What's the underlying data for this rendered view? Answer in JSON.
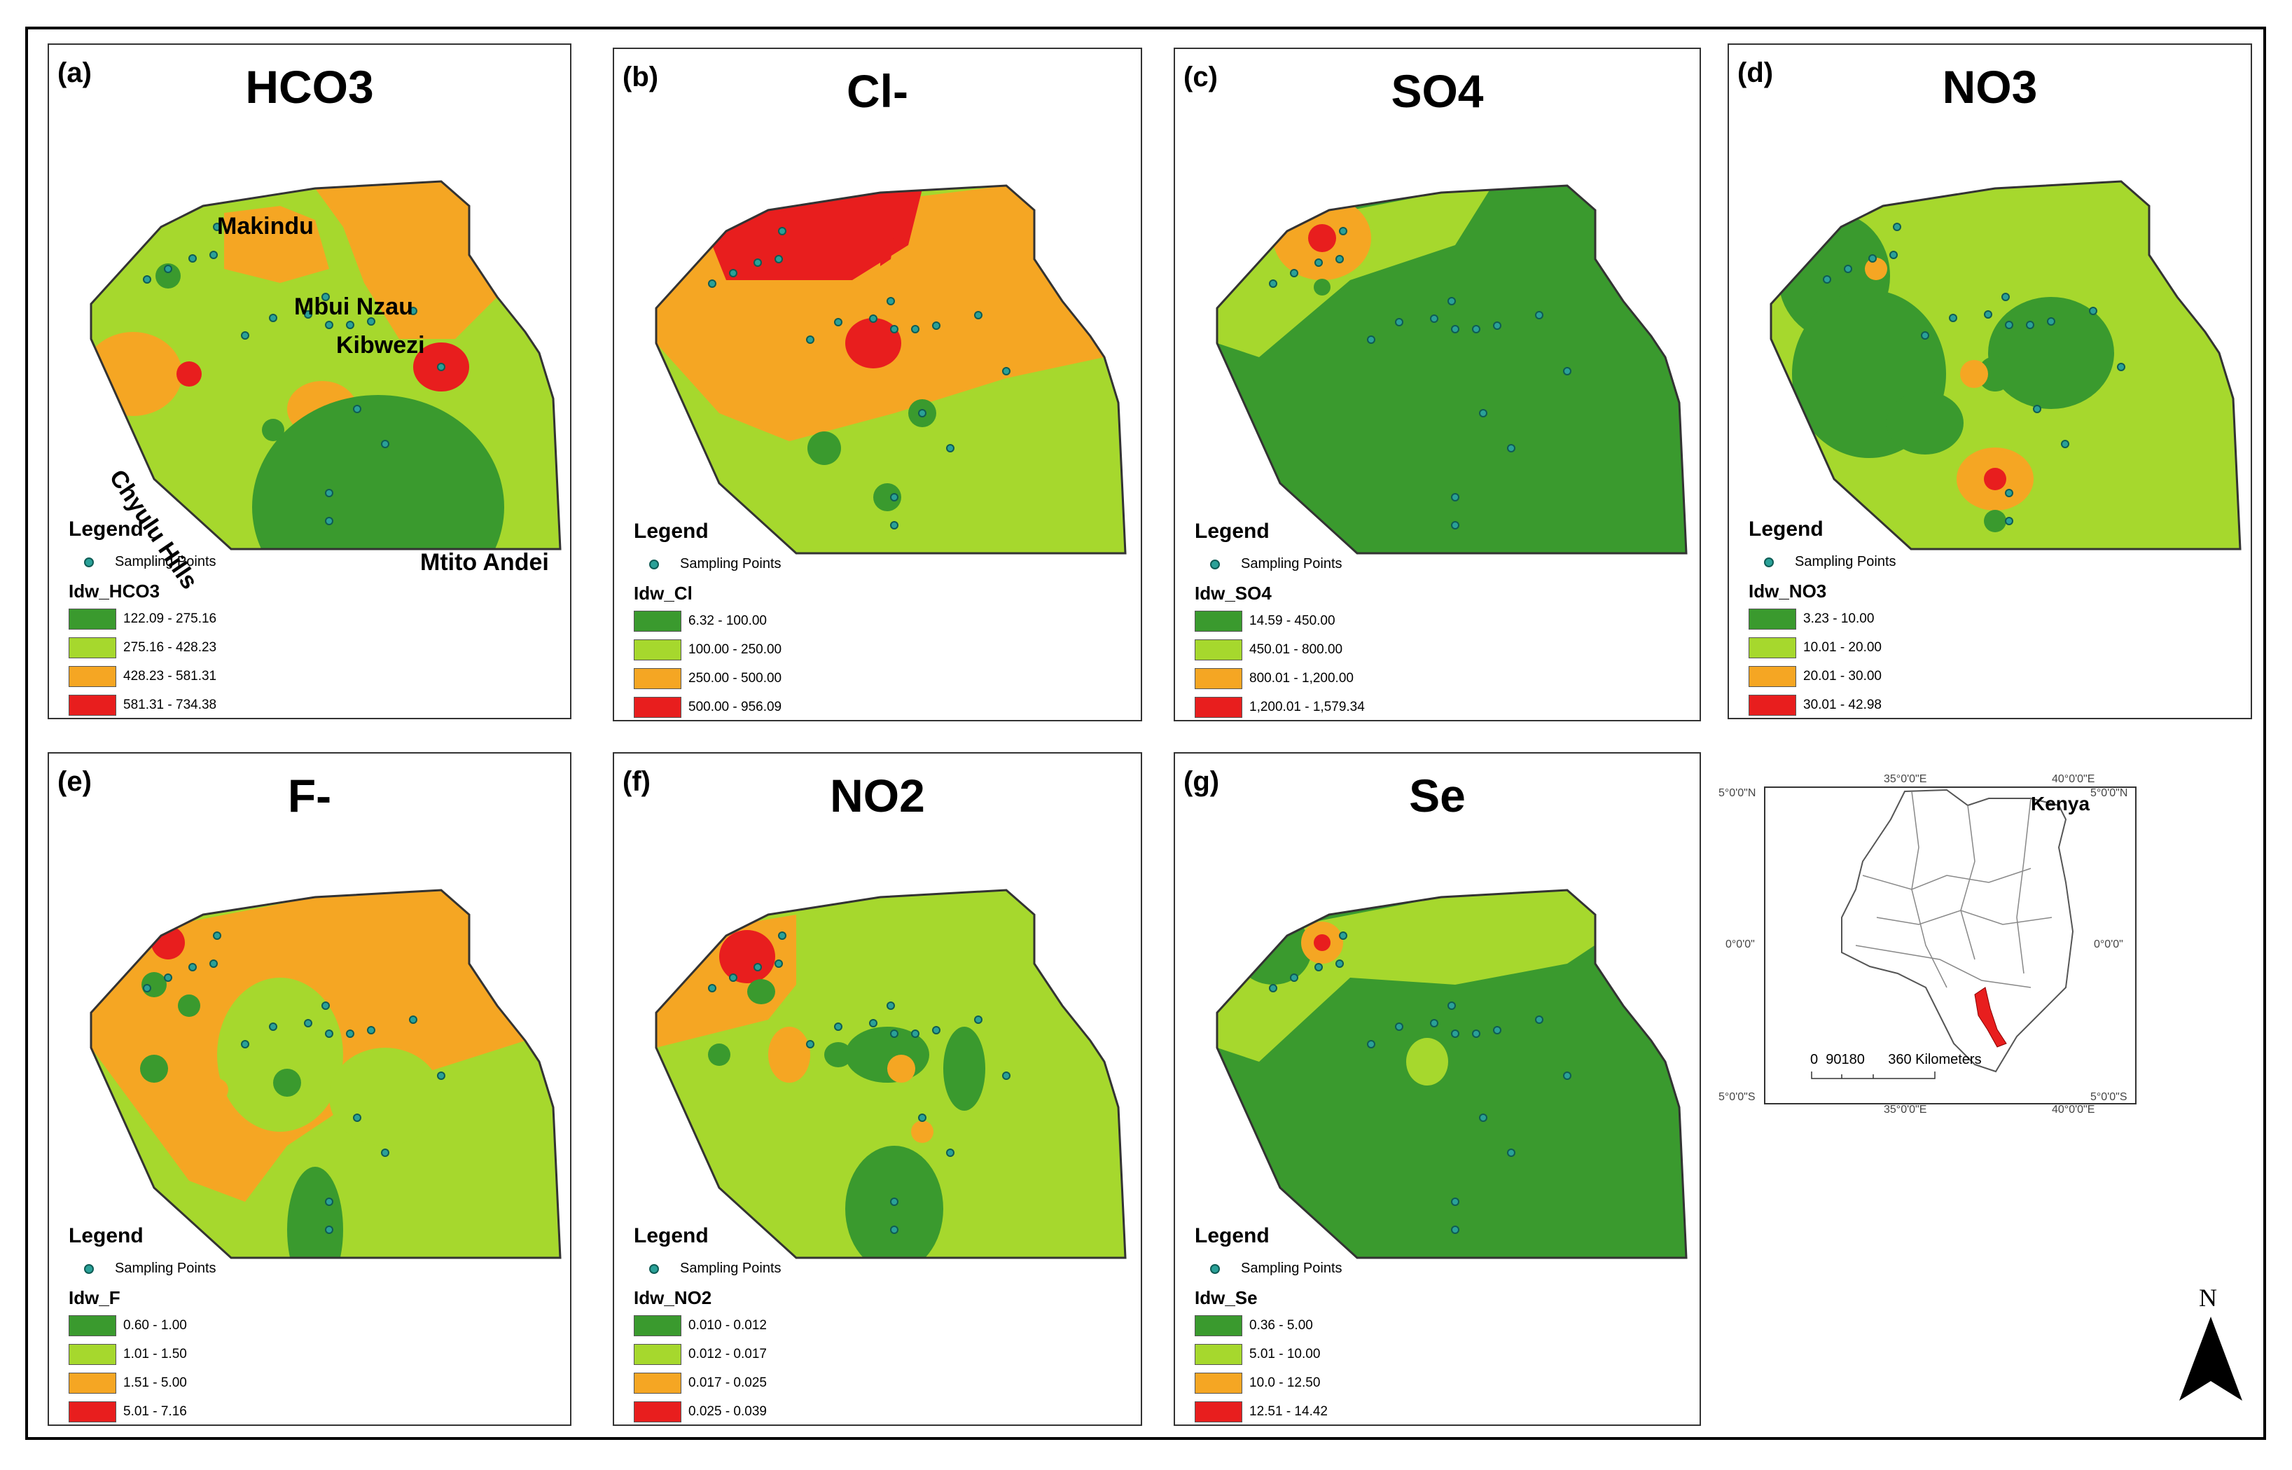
{
  "panels": [
    {
      "id": "a",
      "label": "(a)",
      "title": "HCO3",
      "field": "Idw_HCO3",
      "legend_title": "Legend",
      "sampling_label": "Sampling Points",
      "classes": [
        "122.09 - 275.16",
        "275.16 - 428.23",
        "428.23 - 581.31",
        "581.31 - 734.38"
      ],
      "places": [
        "Makindu",
        "Mbui Nzau",
        "Kibwezi",
        "Chyulu Hills",
        "Mtito Andei"
      ]
    },
    {
      "id": "b",
      "label": "(b)",
      "title": "Cl-",
      "field": "Idw_Cl",
      "legend_title": "Legend",
      "sampling_label": "Sampling Points",
      "classes": [
        "6.32 - 100.00",
        "100.00 - 250.00",
        "250.00 - 500.00",
        "500.00 - 956.09"
      ]
    },
    {
      "id": "c",
      "label": "(c)",
      "title": "SO4",
      "field": "Idw_SO4",
      "legend_title": "Legend",
      "sampling_label": "Sampling Points",
      "classes": [
        "14.59 - 450.00",
        "450.01 - 800.00",
        "800.01 - 1,200.00",
        "1,200.01 - 1,579.34"
      ]
    },
    {
      "id": "d",
      "label": "(d)",
      "title": "NO3",
      "field": "Idw_NO3",
      "legend_title": "Legend",
      "sampling_label": "Sampling Points",
      "classes": [
        "3.23 - 10.00",
        "10.01 - 20.00",
        "20.01 - 30.00",
        "30.01 - 42.98"
      ]
    },
    {
      "id": "e",
      "label": "(e)",
      "title": "F-",
      "field": "Idw_F",
      "legend_title": "Legend",
      "sampling_label": "Sampling Points",
      "classes": [
        "0.60 - 1.00",
        "1.01 - 1.50",
        "1.51 - 5.00",
        "5.01 - 7.16"
      ]
    },
    {
      "id": "f",
      "label": "(f)",
      "title": "NO2",
      "field": "Idw_NO2",
      "legend_title": "Legend",
      "sampling_label": "Sampling Points",
      "classes": [
        "0.010 - 0.012",
        "0.012 - 0.017",
        "0.017 - 0.025",
        "0.025 - 0.039"
      ]
    },
    {
      "id": "g",
      "label": "(g)",
      "title": "Se",
      "field": "Idw_Se",
      "legend_title": "Legend",
      "sampling_label": "Sampling Points",
      "classes": [
        "0.36 - 5.00",
        "5.01 - 10.00",
        "10.0 - 12.50",
        "12.51 - 14.42"
      ]
    }
  ],
  "class_colors": [
    "#3a9a2e",
    "#a6d82d",
    "#f5a623",
    "#e81e1e"
  ],
  "inset": {
    "country": "Kenya",
    "lon_labels": [
      "35°0'0\"E",
      "40°0'0\"E"
    ],
    "lat_labels": [
      "5°0'0\"N",
      "0°0'0\"",
      "5°0'0\"S"
    ],
    "scale_numbers": "0  90180      360 Kilometers",
    "highlight_color": "#e81e1e"
  },
  "north_label": "N"
}
